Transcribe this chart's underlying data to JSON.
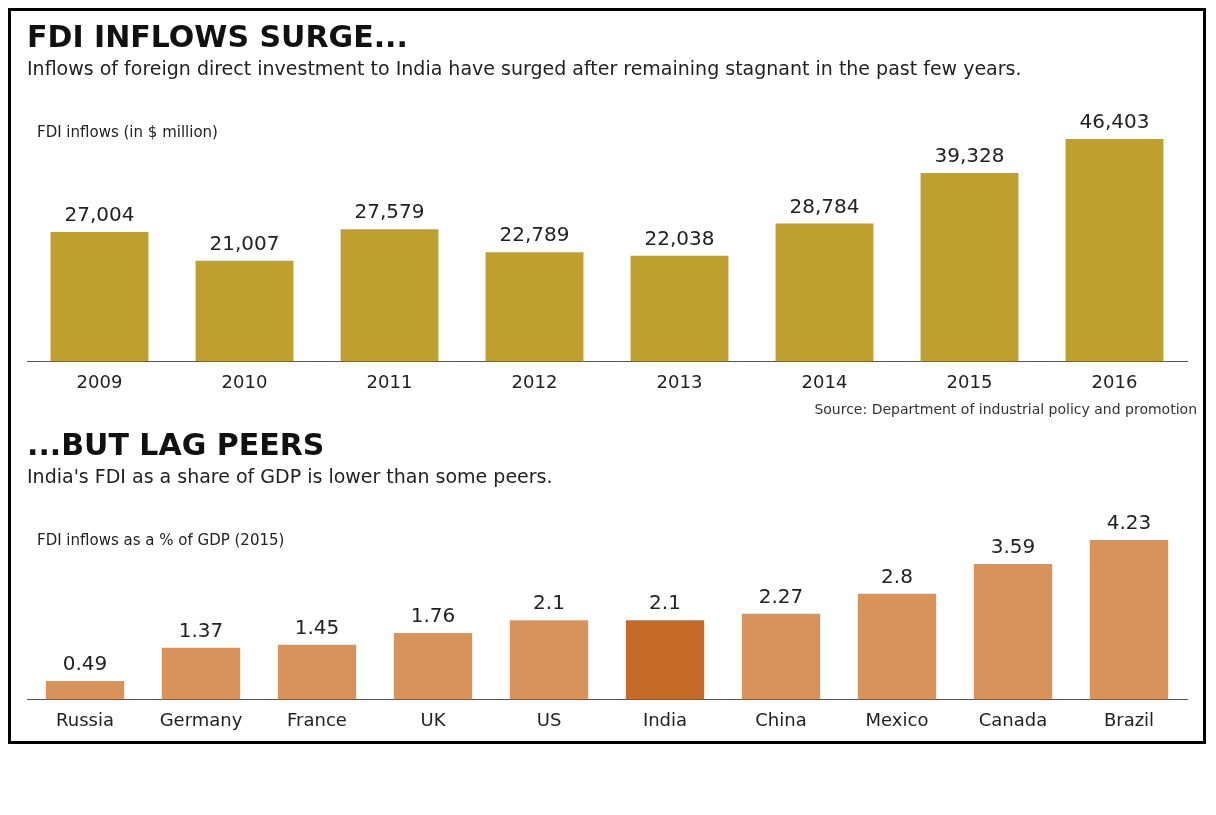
{
  "chart_data": [
    {
      "type": "bar",
      "title": "FDI INFLOWS SURGE...",
      "subtitle": "Inflows of foreign direct investment to India have surged after remaining stagnant in the past few years.",
      "ylabel": "FDI inflows (in $ million)",
      "categories": [
        "2009",
        "2010",
        "2011",
        "2012",
        "2013",
        "2014",
        "2015",
        "2016"
      ],
      "values": [
        27004,
        21007,
        27579,
        22789,
        22038,
        28784,
        39328,
        46403
      ],
      "value_labels": [
        "27,004",
        "21,007",
        "27,579",
        "22,789",
        "22,038",
        "28,784",
        "39,328",
        "46,403"
      ],
      "color": "#bf9f2e",
      "annotations": [
        "Source: Department of industrial policy and promotion"
      ]
    },
    {
      "type": "bar",
      "title": "...BUT LAG PEERS",
      "subtitle": "India's FDI as a share of GDP is lower than some peers.",
      "ylabel": "FDI inflows as a % of GDP (2015)",
      "categories": [
        "Russia",
        "Germany",
        "France",
        "UK",
        "US",
        "India",
        "China",
        "Mexico",
        "Canada",
        "Brazil"
      ],
      "values": [
        0.49,
        1.37,
        1.45,
        1.76,
        2.1,
        2.1,
        2.27,
        2.8,
        3.59,
        4.23
      ],
      "colors": [
        "#d8925a",
        "#d8925a",
        "#d8925a",
        "#d8925a",
        "#d8925a",
        "#c66a2a",
        "#d8925a",
        "#d8925a",
        "#d8925a",
        "#d8925a"
      ],
      "data_labels": true
    }
  ]
}
